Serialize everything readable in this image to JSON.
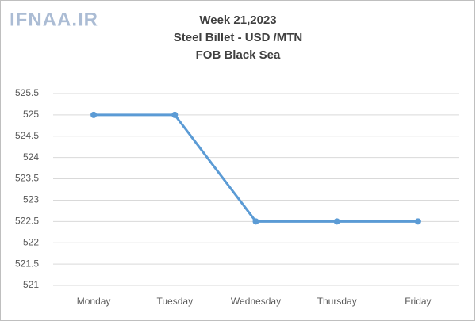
{
  "watermark": "IFNAA.IR",
  "chart_data": {
    "type": "line",
    "title": [
      "Week 21,2023",
      "Steel Billet - USD /MTN",
      "FOB Black Sea"
    ],
    "categories": [
      "Monday",
      "Tuesday",
      "Wednesday",
      "Thursday",
      "Friday"
    ],
    "values": [
      525,
      525,
      522.5,
      522.5,
      522.5
    ],
    "color": "#5b9bd5",
    "ylim": [
      521,
      525.5
    ],
    "yticks": [
      521,
      521.5,
      522,
      522.5,
      523,
      523.5,
      524,
      524.5,
      525,
      525.5
    ],
    "grid": true
  }
}
